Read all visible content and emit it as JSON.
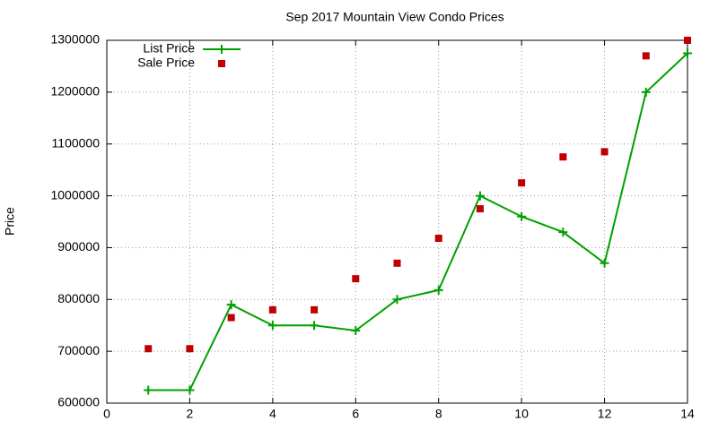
{
  "chart_data": {
    "type": "line",
    "title": "Sep 2017 Mountain View Condo Prices",
    "y_label": "Price",
    "x": [
      1,
      2,
      3,
      4,
      5,
      6,
      7,
      8,
      9,
      10,
      11,
      12,
      13,
      14
    ],
    "series": [
      {
        "name": "List Price",
        "color": "#00a000",
        "style": "linespoints",
        "values": [
          625000,
          625000,
          790000,
          750000,
          750000,
          740000,
          800000,
          818000,
          1000000,
          960000,
          930000,
          870000,
          1200000,
          1275000
        ]
      },
      {
        "name": "Sale Price",
        "color": "#c00000",
        "style": "points",
        "values": [
          705000,
          705000,
          765000,
          780000,
          780000,
          840000,
          870000,
          918000,
          975000,
          1025000,
          1075000,
          1085000,
          1270000,
          1300000
        ]
      }
    ],
    "xlim": [
      0,
      14
    ],
    "xticks": [
      0,
      2,
      4,
      6,
      8,
      10,
      12,
      14
    ],
    "ylim": [
      600000,
      1300000
    ],
    "yticks": [
      600000,
      700000,
      800000,
      900000,
      1000000,
      1100000,
      1200000,
      1300000
    ],
    "grid": true,
    "legend": "top-left"
  }
}
